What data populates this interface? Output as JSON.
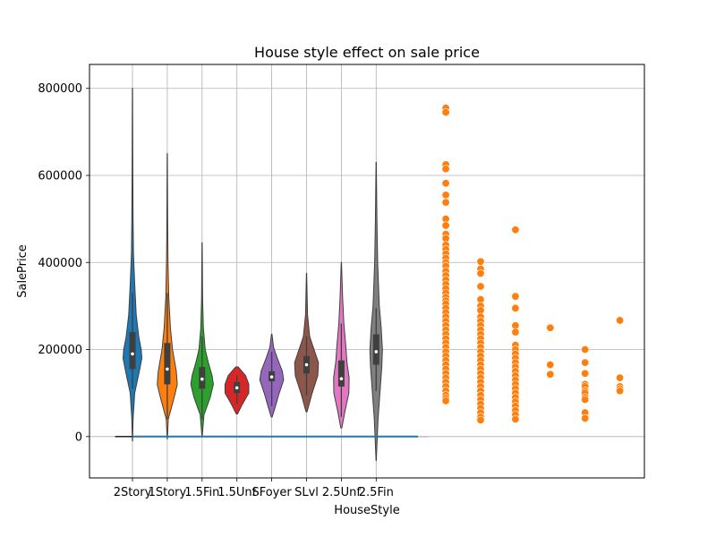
{
  "chart_data": {
    "type": "violin",
    "title": "House style effect on sale price",
    "xlabel": "HouseStyle",
    "ylabel": "SalePrice",
    "ylim": [
      -95000,
      855000
    ],
    "grid": true,
    "categories": [
      "2Story",
      "1Story",
      "1.5Fin",
      "1.5Unf",
      "SFoyer",
      "SLvl",
      "2.5Unf",
      "2.5Fin"
    ],
    "yticks": [
      0,
      200000,
      400000,
      600000,
      800000
    ],
    "violins": [
      {
        "category": "2Story",
        "color": "#1f77b4",
        "min": -10000,
        "max": 800000,
        "q1": 155000,
        "median": 190000,
        "q3": 240000,
        "whisker_low": 110000,
        "whisker_high": 330000,
        "profile": [
          [
            -10000,
            0.01
          ],
          [
            40000,
            0.05
          ],
          [
            100000,
            0.18
          ],
          [
            150000,
            0.55
          ],
          [
            180000,
            0.75
          ],
          [
            200000,
            0.7
          ],
          [
            230000,
            0.5
          ],
          [
            280000,
            0.3
          ],
          [
            350000,
            0.18
          ],
          [
            420000,
            0.08
          ],
          [
            500000,
            0.05
          ],
          [
            600000,
            0.03
          ],
          [
            700000,
            0.02
          ],
          [
            800000,
            0.01
          ]
        ]
      },
      {
        "category": "1Story",
        "color": "#ff7f0e",
        "min": -5000,
        "max": 650000,
        "q1": 120000,
        "median": 155000,
        "q3": 215000,
        "whisker_low": 40000,
        "whisker_high": 330000,
        "profile": [
          [
            -5000,
            0.01
          ],
          [
            40000,
            0.08
          ],
          [
            90000,
            0.55
          ],
          [
            120000,
            0.8
          ],
          [
            150000,
            0.72
          ],
          [
            200000,
            0.42
          ],
          [
            250000,
            0.25
          ],
          [
            320000,
            0.12
          ],
          [
            400000,
            0.06
          ],
          [
            500000,
            0.03
          ],
          [
            650000,
            0.01
          ]
        ]
      },
      {
        "category": "1.5Fin",
        "color": "#2ca02c",
        "min": 0,
        "max": 445000,
        "q1": 110000,
        "median": 132000,
        "q3": 160000,
        "whisker_low": 40000,
        "whisker_high": 230000,
        "profile": [
          [
            0,
            0.01
          ],
          [
            50000,
            0.15
          ],
          [
            90000,
            0.65
          ],
          [
            120000,
            0.9
          ],
          [
            140000,
            0.8
          ],
          [
            170000,
            0.5
          ],
          [
            200000,
            0.25
          ],
          [
            250000,
            0.1
          ],
          [
            320000,
            0.04
          ],
          [
            445000,
            0.01
          ]
        ]
      },
      {
        "category": "1.5Unf",
        "color": "#d62728",
        "min": 52000,
        "max": 160000,
        "q1": 100000,
        "median": 112000,
        "q3": 125000,
        "whisker_low": 75000,
        "whisker_high": 140000,
        "profile": [
          [
            52000,
            0.05
          ],
          [
            75000,
            0.45
          ],
          [
            100000,
            0.95
          ],
          [
            120000,
            0.95
          ],
          [
            140000,
            0.7
          ],
          [
            160000,
            0.1
          ]
        ]
      },
      {
        "category": "SFoyer",
        "color": "#9467bd",
        "min": 45000,
        "max": 235000,
        "q1": 127000,
        "median": 137000,
        "q3": 150000,
        "whisker_low": 70000,
        "whisker_high": 195000,
        "profile": [
          [
            45000,
            0.04
          ],
          [
            70000,
            0.3
          ],
          [
            100000,
            0.6
          ],
          [
            130000,
            0.95
          ],
          [
            150000,
            0.85
          ],
          [
            180000,
            0.45
          ],
          [
            205000,
            0.15
          ],
          [
            235000,
            0.02
          ]
        ]
      },
      {
        "category": "SLvl",
        "color": "#8c564b",
        "min": 57000,
        "max": 375000,
        "q1": 145000,
        "median": 165000,
        "q3": 185000,
        "whisker_low": 95000,
        "whisker_high": 230000,
        "profile": [
          [
            57000,
            0.04
          ],
          [
            100000,
            0.45
          ],
          [
            140000,
            0.9
          ],
          [
            170000,
            0.95
          ],
          [
            200000,
            0.6
          ],
          [
            230000,
            0.25
          ],
          [
            280000,
            0.08
          ],
          [
            375000,
            0.01
          ]
        ]
      },
      {
        "category": "2.5Unf",
        "color": "#e377c2",
        "min": 20000,
        "max": 400000,
        "q1": 115000,
        "median": 133000,
        "q3": 175000,
        "whisker_low": 45000,
        "whisker_high": 260000,
        "profile": [
          [
            20000,
            0.04
          ],
          [
            60000,
            0.3
          ],
          [
            100000,
            0.6
          ],
          [
            135000,
            0.62
          ],
          [
            170000,
            0.45
          ],
          [
            210000,
            0.35
          ],
          [
            260000,
            0.2
          ],
          [
            320000,
            0.1
          ],
          [
            400000,
            0.01
          ]
        ]
      },
      {
        "category": "2.5Fin",
        "color": "#7f7f7f",
        "min": -55000,
        "max": 630000,
        "q1": 165000,
        "median": 195000,
        "q3": 235000,
        "whisker_low": 105000,
        "whisker_high": 295000,
        "profile": [
          [
            -55000,
            0.01
          ],
          [
            40000,
            0.15
          ],
          [
            100000,
            0.3
          ],
          [
            160000,
            0.45
          ],
          [
            200000,
            0.5
          ],
          [
            250000,
            0.4
          ],
          [
            300000,
            0.25
          ],
          [
            400000,
            0.12
          ],
          [
            500000,
            0.06
          ],
          [
            630000,
            0.01
          ]
        ]
      }
    ],
    "line_series": {
      "color": "#1f77b4",
      "points": [
        [
          0,
          0
        ],
        [
          0.4,
          0
        ],
        [
          1,
          0
        ],
        [
          8.2,
          0
        ]
      ]
    },
    "scatter_series": {
      "color": "#ff7f0e",
      "columns": [
        {
          "x": 9.0,
          "y": [
            755000,
            745000,
            625000,
            615000,
            582000,
            555000,
            538000,
            500000,
            485000,
            465000,
            455000,
            440000,
            430000,
            420000,
            410000,
            400000,
            392000,
            380000,
            370000,
            360000,
            350000,
            340000,
            330000,
            320000,
            312000,
            305000,
            295000,
            285000,
            275000,
            265000,
            255000,
            245000,
            235000,
            225000,
            215000,
            205000,
            195000,
            185000,
            175000,
            165000,
            155000,
            145000,
            135000,
            125000,
            115000,
            105000,
            95000,
            88000,
            82000
          ]
        },
        {
          "x": 10.0,
          "y": [
            402000,
            385000,
            375000,
            345000,
            315000,
            300000,
            290000,
            275000,
            265000,
            255000,
            245000,
            235000,
            225000,
            215000,
            205000,
            195000,
            185000,
            175000,
            165000,
            155000,
            145000,
            135000,
            125000,
            115000,
            105000,
            95000,
            85000,
            75000,
            65000,
            55000,
            45000,
            38000
          ]
        },
        {
          "x": 11.0,
          "y": [
            475000,
            322000,
            295000,
            255000,
            240000,
            210000,
            200000,
            190000,
            180000,
            170000,
            160000,
            150000,
            140000,
            130000,
            120000,
            110000,
            100000,
            90000,
            80000,
            70000,
            60000,
            50000,
            40000
          ]
        },
        {
          "x": 12.0,
          "y": [
            250000,
            165000,
            143000
          ]
        },
        {
          "x": 13.0,
          "y": [
            200000,
            170000,
            145000,
            120000,
            115000,
            105000,
            100000,
            90000,
            85000,
            55000,
            42000
          ]
        },
        {
          "x": 14.0,
          "y": [
            267000,
            135000,
            115000,
            110000,
            105000
          ]
        }
      ]
    }
  }
}
